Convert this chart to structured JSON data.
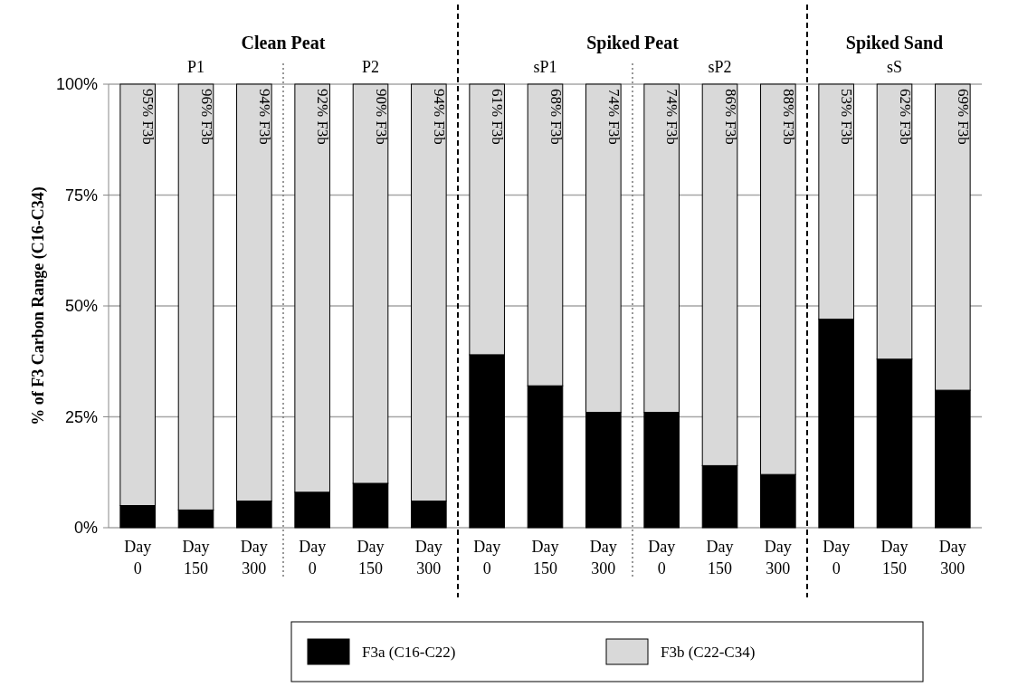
{
  "chart_data": {
    "type": "bar",
    "stacked": true,
    "categories": [
      "Day 0",
      "Day 150",
      "Day 300",
      "Day 0",
      "Day 150",
      "Day 300",
      "Day 0",
      "Day 150",
      "Day 300",
      "Day 0",
      "Day 150",
      "Day 300",
      "Day 0",
      "Day 150",
      "Day 300"
    ],
    "series": [
      {
        "name": "F3a (C16-C22)",
        "color": "#000000",
        "values": [
          5,
          4,
          6,
          8,
          10,
          6,
          39,
          32,
          26,
          26,
          14,
          12,
          47,
          38,
          31
        ]
      },
      {
        "name": "F3b (C22-C34)",
        "color": "#d9d9d9",
        "values": [
          95,
          96,
          94,
          92,
          90,
          94,
          61,
          68,
          74,
          74,
          86,
          88,
          53,
          62,
          69
        ],
        "value_labels": [
          "95% F3b",
          "96% F3b",
          "94% F3b",
          "92% F3b",
          "90% F3b",
          "94% F3b",
          "61% F3b",
          "68% F3b",
          "74% F3b",
          "74% F3b",
          "86% F3b",
          "88% F3b",
          "53% F3b",
          "62% F3b",
          "69% F3b"
        ]
      }
    ],
    "ylabel": "% of F3 Carbon  Range (C16-C34)",
    "ylim": [
      0,
      100
    ],
    "yticks": [
      {
        "value": 0,
        "label": "0%"
      },
      {
        "value": 25,
        "label": "25%"
      },
      {
        "value": 50,
        "label": "50%"
      },
      {
        "value": 75,
        "label": "75%"
      },
      {
        "value": 100,
        "label": "100%"
      }
    ],
    "grid": "y",
    "legend": "bottom",
    "annotations": [
      "Clean Peat",
      "Spiked Peat",
      "Spiked Sand",
      "P1",
      "P2",
      "sP1",
      "sP2",
      "sS"
    ]
  }
}
